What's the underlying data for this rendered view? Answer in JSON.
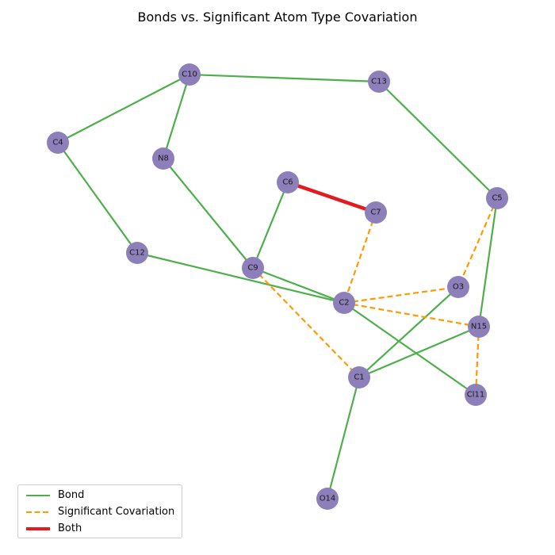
{
  "title": "Bonds vs. Significant Atom Type Covariation",
  "colors": {
    "bond": "#4daf4a",
    "covariation": "#ff9a00",
    "both": "#e41a1c",
    "node": "#8c7fba"
  },
  "legend": {
    "bond": "Bond",
    "covariation": "Significant Covariation",
    "both": "Both"
  },
  "nodes": [
    {
      "id": "C10",
      "label": "C10"
    },
    {
      "id": "C13",
      "label": "C13"
    },
    {
      "id": "C4",
      "label": "C4"
    },
    {
      "id": "N8",
      "label": "N8"
    },
    {
      "id": "C6",
      "label": "C6"
    },
    {
      "id": "C7",
      "label": "C7"
    },
    {
      "id": "C5",
      "label": "C5"
    },
    {
      "id": "C12",
      "label": "C12"
    },
    {
      "id": "C9",
      "label": "C9"
    },
    {
      "id": "O3",
      "label": "O3"
    },
    {
      "id": "C2",
      "label": "C2"
    },
    {
      "id": "N15",
      "label": "N15"
    },
    {
      "id": "C1",
      "label": "C1"
    },
    {
      "id": "Cl11",
      "label": "Cl11"
    },
    {
      "id": "O14",
      "label": "O14"
    }
  ],
  "edges": [
    {
      "source": "C10",
      "target": "C13",
      "kind": "bond"
    },
    {
      "source": "C10",
      "target": "C4",
      "kind": "bond"
    },
    {
      "source": "C10",
      "target": "N8",
      "kind": "bond"
    },
    {
      "source": "C13",
      "target": "C5",
      "kind": "bond"
    },
    {
      "source": "C4",
      "target": "C12",
      "kind": "bond"
    },
    {
      "source": "N8",
      "target": "C9",
      "kind": "bond"
    },
    {
      "source": "C6",
      "target": "C9",
      "kind": "bond"
    },
    {
      "source": "C12",
      "target": "C2",
      "kind": "bond"
    },
    {
      "source": "C9",
      "target": "C2",
      "kind": "bond"
    },
    {
      "source": "C2",
      "target": "Cl11",
      "kind": "bond"
    },
    {
      "source": "C5",
      "target": "N15",
      "kind": "bond"
    },
    {
      "source": "O3",
      "target": "C1",
      "kind": "bond"
    },
    {
      "source": "N15",
      "target": "C1",
      "kind": "bond"
    },
    {
      "source": "C1",
      "target": "O14",
      "kind": "bond"
    },
    {
      "source": "C6",
      "target": "C7",
      "kind": "both"
    },
    {
      "source": "C7",
      "target": "C2",
      "kind": "covariation"
    },
    {
      "source": "C5",
      "target": "O3",
      "kind": "covariation"
    },
    {
      "source": "C2",
      "target": "O3",
      "kind": "covariation"
    },
    {
      "source": "C2",
      "target": "N15",
      "kind": "covariation"
    },
    {
      "source": "C9",
      "target": "C1",
      "kind": "covariation"
    },
    {
      "source": "N15",
      "target": "Cl11",
      "kind": "covariation"
    }
  ]
}
